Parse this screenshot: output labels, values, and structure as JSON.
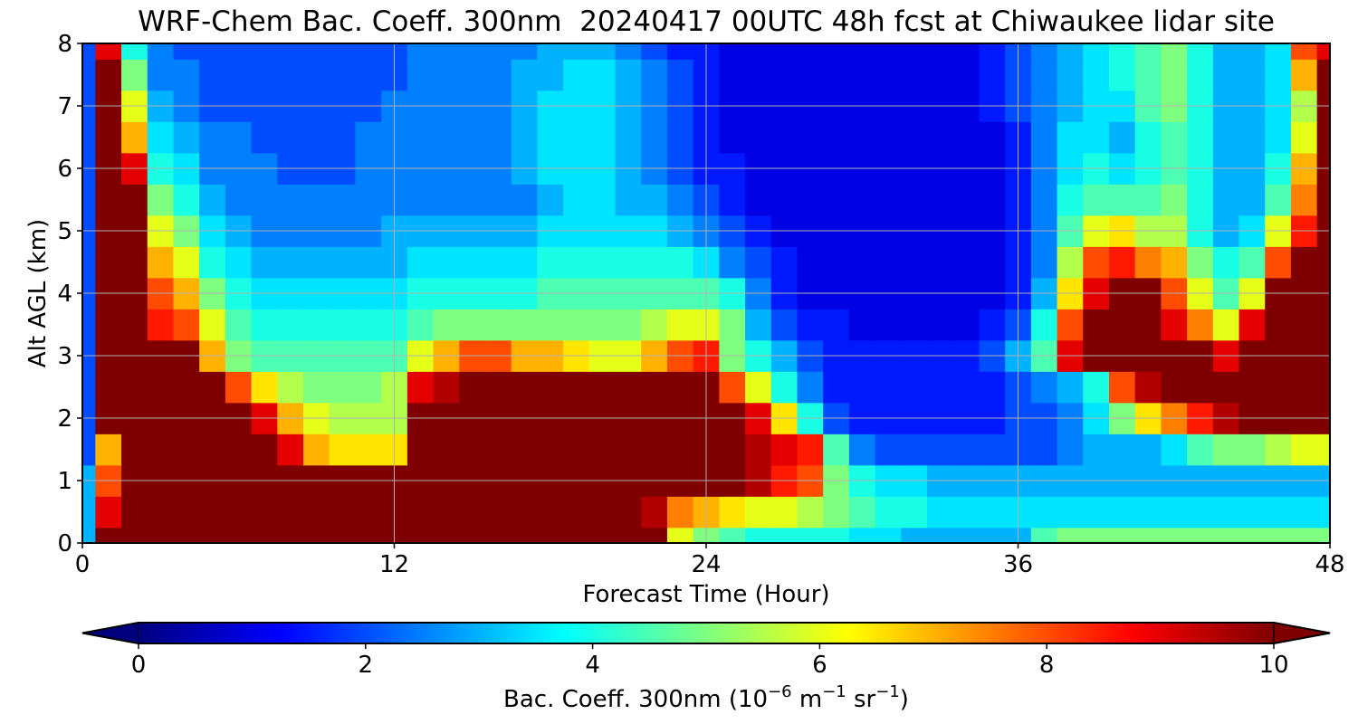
{
  "chart_data": {
    "type": "heatmap",
    "title": "WRF-Chem Bac. Coeff. 300nm  20240417 00UTC 48h fcst at Chiwaukee lidar site",
    "xlabel": "Forecast Time (Hour)",
    "ylabel": "Alt AGL (km)",
    "xlim": [
      0,
      48
    ],
    "ylim": [
      0,
      8
    ],
    "x_ticks": [
      0,
      12,
      24,
      36,
      48
    ],
    "y_ticks": [
      0,
      1,
      2,
      3,
      4,
      5,
      6,
      7,
      8
    ],
    "grid": true,
    "colormap": "jet",
    "colorbar": {
      "orientation": "horizontal",
      "location": "bottom",
      "range": [
        0,
        10
      ],
      "extend": "both",
      "ticks": [
        0,
        2,
        4,
        6,
        8,
        10
      ],
      "label_main": "Bac. Coeff. 300nm  (10",
      "label_exp1": "−6",
      "label_mid1": " m",
      "label_exp2": "−1",
      "label_mid2": " sr",
      "label_exp3": "−1",
      "label_end": ")",
      "colors": [
        "#00007f",
        "#0000ff",
        "#007fff",
        "#00ffff",
        "#7fff7f",
        "#ffff00",
        "#ff7f00",
        "#ff0000",
        "#7f0000"
      ]
    },
    "hours": [
      0,
      1,
      2,
      3,
      4,
      5,
      6,
      7,
      8,
      9,
      10,
      11,
      12,
      13,
      14,
      15,
      16,
      17,
      18,
      19,
      20,
      21,
      22,
      23,
      24,
      25,
      26,
      27,
      28,
      29,
      30,
      31,
      32,
      33,
      34,
      35,
      36,
      37,
      38,
      39,
      40,
      41,
      42,
      43,
      44,
      45,
      46,
      47,
      48
    ],
    "altitudes_km": [
      0.0,
      0.5,
      1.0,
      1.5,
      2.0,
      2.5,
      3.0,
      3.5,
      4.0,
      4.5,
      5.0,
      5.5,
      6.0,
      6.5,
      7.0,
      7.5,
      8.0
    ],
    "values": [
      [
        3.0,
        10.0,
        10.0,
        10.0,
        10.0,
        10.0,
        10.0,
        10.0,
        10.0,
        10.0,
        10.0,
        10.0,
        10.0,
        10.0,
        10.0,
        10.0,
        10.0,
        10.0,
        10.0,
        10.0,
        10.0,
        10.0,
        10.0,
        6.0,
        5.0,
        4.5,
        4.0,
        4.0,
        4.0,
        4.0,
        3.5,
        3.5,
        3.0,
        3.0,
        3.0,
        3.0,
        3.0,
        4.5,
        5.0,
        5.0,
        5.0,
        5.0,
        5.0,
        5.0,
        5.0,
        5.0,
        5.0,
        5.0,
        5.0
      ],
      [
        3.0,
        9.0,
        10.0,
        10.0,
        10.0,
        10.0,
        10.0,
        10.0,
        10.0,
        10.0,
        10.0,
        10.0,
        10.0,
        10.0,
        10.0,
        10.0,
        10.0,
        10.0,
        10.0,
        10.0,
        10.0,
        10.0,
        9.5,
        7.5,
        7.0,
        6.5,
        6.0,
        6.0,
        5.5,
        5.0,
        4.5,
        4.0,
        4.0,
        3.5,
        3.5,
        3.5,
        3.5,
        3.5,
        3.5,
        3.5,
        3.5,
        3.5,
        3.5,
        3.5,
        3.5,
        3.5,
        3.5,
        3.5,
        3.5
      ],
      [
        3.0,
        8.0,
        10.0,
        10.0,
        10.0,
        10.0,
        10.0,
        10.0,
        10.0,
        10.0,
        10.0,
        10.0,
        10.0,
        10.0,
        10.0,
        10.0,
        10.0,
        10.0,
        10.0,
        10.0,
        10.0,
        10.0,
        10.0,
        10.0,
        10.0,
        10.0,
        9.5,
        8.5,
        8.0,
        5.0,
        4.0,
        3.5,
        3.5,
        3.0,
        3.0,
        3.0,
        3.0,
        3.0,
        3.0,
        3.0,
        3.0,
        3.0,
        3.0,
        3.0,
        3.0,
        3.0,
        3.0,
        3.0,
        3.0
      ],
      [
        2.0,
        7.0,
        10.0,
        10.0,
        10.0,
        10.0,
        10.0,
        10.0,
        9.0,
        7.0,
        6.5,
        6.5,
        6.5,
        10.0,
        10.0,
        10.0,
        10.0,
        10.0,
        10.0,
        10.0,
        10.0,
        10.0,
        10.0,
        10.0,
        10.0,
        10.0,
        9.5,
        9.0,
        8.5,
        4.5,
        2.5,
        2.0,
        2.0,
        2.0,
        2.0,
        2.0,
        2.0,
        2.0,
        2.5,
        3.0,
        3.0,
        3.0,
        3.5,
        4.5,
        5.0,
        5.0,
        5.5,
        6.0,
        6.0
      ],
      [
        2.0,
        10.0,
        10.0,
        10.0,
        10.0,
        10.0,
        10.0,
        9.0,
        7.0,
        6.0,
        5.5,
        5.5,
        5.5,
        10.0,
        10.0,
        10.0,
        10.0,
        10.0,
        10.0,
        10.0,
        10.0,
        10.0,
        10.0,
        10.0,
        10.0,
        10.0,
        9.0,
        6.5,
        4.0,
        2.0,
        1.5,
        1.5,
        1.5,
        1.5,
        1.5,
        1.5,
        2.0,
        2.0,
        2.5,
        3.5,
        5.0,
        6.5,
        7.5,
        8.5,
        9.5,
        10.0,
        10.0,
        10.0,
        10.0
      ],
      [
        2.0,
        10.0,
        10.0,
        10.0,
        10.0,
        10.0,
        8.0,
        6.5,
        5.5,
        5.0,
        5.0,
        5.0,
        5.5,
        9.0,
        9.5,
        10.0,
        10.0,
        10.0,
        10.0,
        10.0,
        10.0,
        10.0,
        10.0,
        10.0,
        10.0,
        8.0,
        6.0,
        4.0,
        2.5,
        1.5,
        1.5,
        1.5,
        1.5,
        1.5,
        1.5,
        1.5,
        2.0,
        2.5,
        3.0,
        4.0,
        8.0,
        9.5,
        10.0,
        10.0,
        10.0,
        10.0,
        10.0,
        10.0,
        10.0
      ],
      [
        2.0,
        10.0,
        10.0,
        10.0,
        10.0,
        7.0,
        5.0,
        4.5,
        4.5,
        4.5,
        4.5,
        4.5,
        4.5,
        6.0,
        7.0,
        8.0,
        8.0,
        7.0,
        7.0,
        6.5,
        6.0,
        6.0,
        7.0,
        8.0,
        8.5,
        5.0,
        4.0,
        3.0,
        2.0,
        1.5,
        1.5,
        1.5,
        1.5,
        1.5,
        1.5,
        2.0,
        3.0,
        4.5,
        9.0,
        10.0,
        10.0,
        10.0,
        10.0,
        10.0,
        9.0,
        10.0,
        10.0,
        10.0,
        10.0
      ],
      [
        2.0,
        10.0,
        10.0,
        8.5,
        8.0,
        6.0,
        4.5,
        4.0,
        4.0,
        4.0,
        4.0,
        4.0,
        4.0,
        4.5,
        5.0,
        5.0,
        5.0,
        5.0,
        5.0,
        5.0,
        5.0,
        5.0,
        5.5,
        6.0,
        6.0,
        5.0,
        3.0,
        2.0,
        1.5,
        1.5,
        1.0,
        1.0,
        1.0,
        1.0,
        1.0,
        1.5,
        2.0,
        4.0,
        8.0,
        10.0,
        10.0,
        10.0,
        9.0,
        7.5,
        6.0,
        9.0,
        10.0,
        10.0,
        10.0
      ],
      [
        2.0,
        10.0,
        10.0,
        8.0,
        7.0,
        5.0,
        4.0,
        3.5,
        3.5,
        3.5,
        3.5,
        3.5,
        3.5,
        4.0,
        4.0,
        4.0,
        4.0,
        4.0,
        4.5,
        4.5,
        4.5,
        4.5,
        4.5,
        4.5,
        4.5,
        4.0,
        2.5,
        1.5,
        1.0,
        1.0,
        1.0,
        1.0,
        1.0,
        1.0,
        1.0,
        1.0,
        1.5,
        3.0,
        6.5,
        9.0,
        10.0,
        10.0,
        8.0,
        6.0,
        4.5,
        6.0,
        10.0,
        10.0,
        10.0
      ],
      [
        2.0,
        10.0,
        10.0,
        7.0,
        6.0,
        4.0,
        3.5,
        3.0,
        3.0,
        3.0,
        3.0,
        3.0,
        3.0,
        3.5,
        3.5,
        3.5,
        3.5,
        3.5,
        4.0,
        4.0,
        4.0,
        4.0,
        4.0,
        4.0,
        3.5,
        2.5,
        2.0,
        1.5,
        1.0,
        1.0,
        1.0,
        1.0,
        1.0,
        1.0,
        1.0,
        1.0,
        1.5,
        2.5,
        5.5,
        8.0,
        8.5,
        7.5,
        7.0,
        5.0,
        4.0,
        4.5,
        8.0,
        10.0,
        10.0
      ],
      [
        2.0,
        10.0,
        10.0,
        6.0,
        5.0,
        3.5,
        3.0,
        2.5,
        2.5,
        2.5,
        2.5,
        2.5,
        3.0,
        3.0,
        3.0,
        3.0,
        3.0,
        3.0,
        3.5,
        3.5,
        3.5,
        3.5,
        3.5,
        3.0,
        2.5,
        2.0,
        1.5,
        1.0,
        1.0,
        1.0,
        1.0,
        1.0,
        1.0,
        1.0,
        1.0,
        1.0,
        1.5,
        2.5,
        4.5,
        6.0,
        6.5,
        5.5,
        5.5,
        4.0,
        3.0,
        3.5,
        6.0,
        8.5,
        10.0
      ],
      [
        2.0,
        10.0,
        10.0,
        5.0,
        4.0,
        3.0,
        2.5,
        2.5,
        2.5,
        2.5,
        2.5,
        2.5,
        2.5,
        2.5,
        2.5,
        2.5,
        2.5,
        2.5,
        3.0,
        3.5,
        3.5,
        3.0,
        3.0,
        2.5,
        2.0,
        1.5,
        1.0,
        1.0,
        1.0,
        1.0,
        1.0,
        1.0,
        1.0,
        1.0,
        1.0,
        1.0,
        1.5,
        2.5,
        4.0,
        4.5,
        4.5,
        4.5,
        5.0,
        4.0,
        3.0,
        3.0,
        4.5,
        7.5,
        10.0
      ],
      [
        2.0,
        10.0,
        9.0,
        4.0,
        3.5,
        2.5,
        2.5,
        2.5,
        2.0,
        2.0,
        2.0,
        2.5,
        2.5,
        2.5,
        2.5,
        2.5,
        2.5,
        3.0,
        3.5,
        3.5,
        3.5,
        3.0,
        2.5,
        2.0,
        1.5,
        1.5,
        1.0,
        1.0,
        1.0,
        1.0,
        1.0,
        1.0,
        1.0,
        1.0,
        1.0,
        1.0,
        1.5,
        2.5,
        3.5,
        4.0,
        3.5,
        4.0,
        4.5,
        4.0,
        3.0,
        3.0,
        4.0,
        7.0,
        10.0
      ],
      [
        2.0,
        10.0,
        7.0,
        3.5,
        3.0,
        2.5,
        2.5,
        2.0,
        2.0,
        2.0,
        2.0,
        2.5,
        2.5,
        2.5,
        2.5,
        2.5,
        2.5,
        3.0,
        3.5,
        3.5,
        3.5,
        3.0,
        2.5,
        2.0,
        1.5,
        1.0,
        1.0,
        1.0,
        1.0,
        1.0,
        1.0,
        1.0,
        1.0,
        1.0,
        1.0,
        1.0,
        1.5,
        2.5,
        3.5,
        3.5,
        3.0,
        4.0,
        4.5,
        4.0,
        3.0,
        3.0,
        3.5,
        6.0,
        10.0
      ],
      [
        2.0,
        10.0,
        6.0,
        3.0,
        2.5,
        2.0,
        2.0,
        2.0,
        2.0,
        2.0,
        2.0,
        2.0,
        2.5,
        2.5,
        2.5,
        2.5,
        2.5,
        3.0,
        3.5,
        3.5,
        3.5,
        3.0,
        2.5,
        2.0,
        1.5,
        1.0,
        1.0,
        1.0,
        1.0,
        1.0,
        1.0,
        1.0,
        1.0,
        1.0,
        1.0,
        1.5,
        2.0,
        2.5,
        3.0,
        3.5,
        3.5,
        4.5,
        5.0,
        4.0,
        3.0,
        3.0,
        3.5,
        5.5,
        10.0
      ],
      [
        2.0,
        10.0,
        5.0,
        2.5,
        2.5,
        2.0,
        2.0,
        2.0,
        2.0,
        2.0,
        2.0,
        2.0,
        2.0,
        2.5,
        2.5,
        2.5,
        2.5,
        3.0,
        3.0,
        3.5,
        3.5,
        3.0,
        2.5,
        2.0,
        1.5,
        1.0,
        1.0,
        1.0,
        1.0,
        1.0,
        1.0,
        1.0,
        1.0,
        1.0,
        1.0,
        1.5,
        2.0,
        2.5,
        3.0,
        3.5,
        4.0,
        4.5,
        5.0,
        4.0,
        3.0,
        3.0,
        3.5,
        7.0,
        10.0
      ],
      [
        2.0,
        9.0,
        4.0,
        2.5,
        2.0,
        2.0,
        2.0,
        2.0,
        2.0,
        2.0,
        2.0,
        2.0,
        2.0,
        2.5,
        2.5,
        2.5,
        2.5,
        2.5,
        3.0,
        3.0,
        3.0,
        2.5,
        2.0,
        1.5,
        1.5,
        1.0,
        1.0,
        1.0,
        1.0,
        1.0,
        1.0,
        1.0,
        1.0,
        1.0,
        1.0,
        1.5,
        2.0,
        2.5,
        3.0,
        3.5,
        4.0,
        4.5,
        5.0,
        4.0,
        3.0,
        3.0,
        3.5,
        8.0,
        9.0
      ]
    ]
  }
}
